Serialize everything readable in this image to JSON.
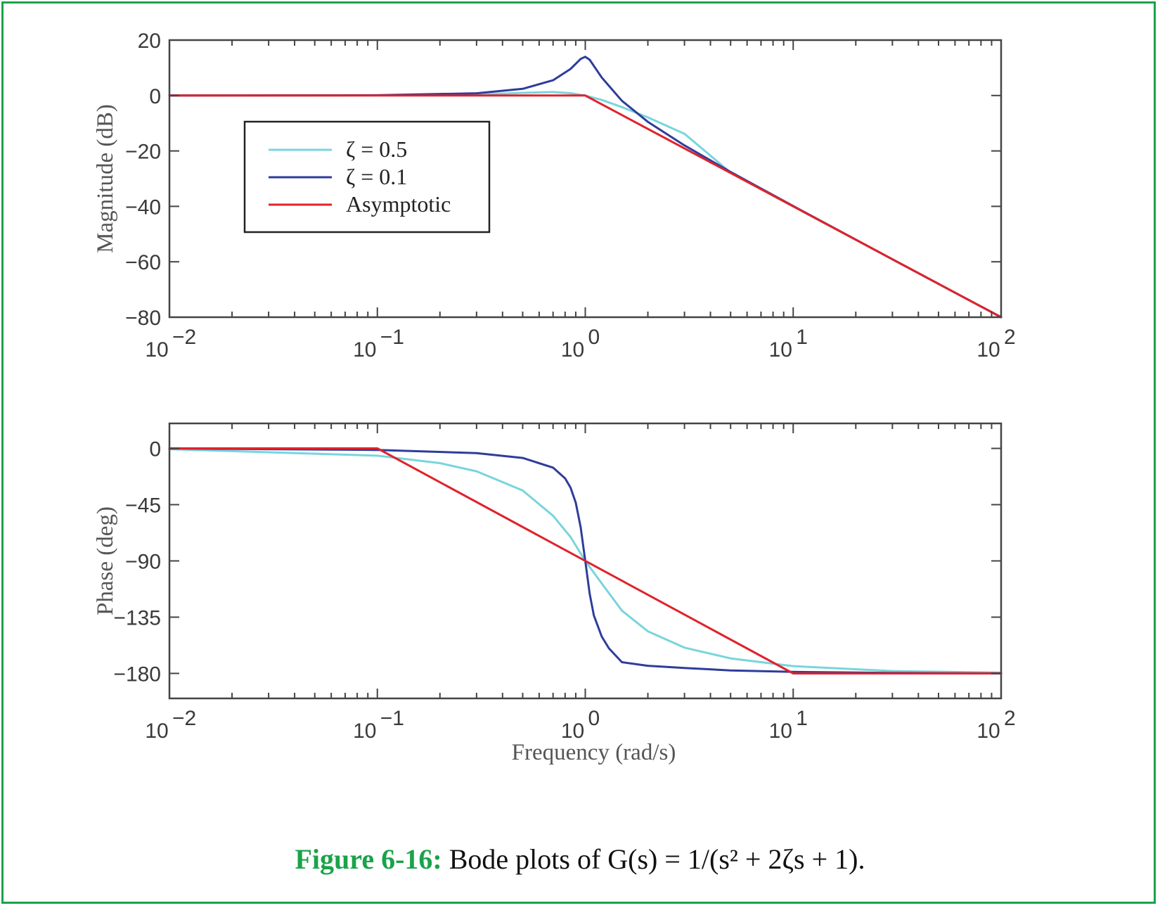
{
  "caption": {
    "label": "Figure 6-16:",
    "text": "Bode plots of G(s) = 1/(s² + 2ζs + 1)."
  },
  "colors": {
    "frame": "#1aa34a",
    "zeta_05": "#79d5dc",
    "zeta_01": "#2e3d9b",
    "asymptotic": "#e0222b"
  },
  "chart_data": [
    {
      "type": "line",
      "title": "",
      "xlabel": "",
      "ylabel": "Magnitude (dB)",
      "xscale": "log",
      "xlim": [
        0.01,
        100
      ],
      "ylim": [
        -80,
        20
      ],
      "xticks": [
        0.01,
        0.1,
        1,
        10,
        100
      ],
      "xtick_labels": [
        {
          "base": "10",
          "exp": "−2"
        },
        {
          "base": "10",
          "exp": "−1"
        },
        {
          "base": "10",
          "exp": "0"
        },
        {
          "base": "10",
          "exp": "1"
        },
        {
          "base": "10",
          "exp": "2"
        }
      ],
      "yticks": [
        20,
        0,
        -20,
        -40,
        -60,
        -80
      ],
      "ytick_labels": [
        "20",
        "0",
        "−20",
        "−40",
        "−60",
        "−80"
      ],
      "legend": {
        "placement": "upper-left",
        "entries": [
          "ζ = 0.5",
          "ζ = 0.1",
          "Asymptotic"
        ]
      },
      "series": [
        {
          "name": "ζ = 0.5",
          "color": "#79d5dc",
          "x": [
            0.01,
            0.1,
            0.3,
            0.5,
            0.7,
            0.85,
            1,
            1.2,
            1.5,
            2,
            3,
            5,
            10,
            30,
            100
          ],
          "y": [
            0.0,
            0.04,
            0.33,
            0.97,
            1.25,
            0.85,
            0.0,
            -1.6,
            -4.2,
            -7.9,
            -13.8,
            -27.8,
            -40.0,
            -59.1,
            -80.0
          ]
        },
        {
          "name": "ζ = 0.1",
          "color": "#2e3d9b",
          "x": [
            0.01,
            0.1,
            0.3,
            0.5,
            0.7,
            0.85,
            0.95,
            1,
            1.05,
            1.2,
            1.5,
            2,
            3,
            5,
            10,
            30,
            100
          ],
          "y": [
            0.0,
            0.09,
            0.8,
            2.4,
            5.5,
            9.6,
            13.2,
            13.98,
            12.9,
            6.5,
            -1.9,
            -9.5,
            -18.0,
            -27.6,
            -39.9,
            -59.1,
            -80.0
          ]
        },
        {
          "name": "Asymptotic",
          "color": "#e0222b",
          "x": [
            0.01,
            1,
            100
          ],
          "y": [
            0,
            0,
            -80
          ]
        }
      ]
    },
    {
      "type": "line",
      "title": "",
      "xlabel": "Frequency (rad/s)",
      "ylabel": "Phase (deg)",
      "xscale": "log",
      "xlim": [
        0.01,
        100
      ],
      "ylim": [
        -200,
        20
      ],
      "xticks": [
        0.01,
        0.1,
        1,
        10,
        100
      ],
      "xtick_labels": [
        {
          "base": "10",
          "exp": "−2"
        },
        {
          "base": "10",
          "exp": "−1"
        },
        {
          "base": "10",
          "exp": "0"
        },
        {
          "base": "10",
          "exp": "1"
        },
        {
          "base": "10",
          "exp": "2"
        }
      ],
      "yticks": [
        0,
        -45,
        -90,
        -135,
        -180
      ],
      "ytick_labels": [
        "0",
        "−45",
        "−90",
        "−135",
        "−180"
      ],
      "series": [
        {
          "name": "ζ = 0.5",
          "color": "#79d5dc",
          "x": [
            0.01,
            0.1,
            0.2,
            0.3,
            0.5,
            0.7,
            0.85,
            1,
            1.2,
            1.5,
            2,
            3,
            5,
            10,
            30,
            100
          ],
          "y": [
            -0.6,
            -5.8,
            -11.8,
            -18.3,
            -33.7,
            -53.9,
            -70.9,
            -90.0,
            -108.0,
            -129.8,
            -146.3,
            -159.4,
            -168.0,
            -174.2,
            -178.1,
            -179.4
          ]
        },
        {
          "name": "ζ = 0.1",
          "color": "#2e3d9b",
          "x": [
            0.01,
            0.1,
            0.3,
            0.5,
            0.7,
            0.8,
            0.85,
            0.9,
            0.95,
            1,
            1.05,
            1.1,
            1.2,
            1.3,
            1.5,
            2,
            3,
            5,
            10,
            30,
            100
          ],
          "y": [
            -0.1,
            -1.2,
            -3.8,
            -7.6,
            -15.4,
            -23.96,
            -31.4,
            -43.5,
            -62.9,
            -90.0,
            -116.4,
            -133.6,
            -150.5,
            -160.0,
            -171.0,
            -173.9,
            -175.7,
            -177.6,
            -178.8,
            -179.6,
            -179.9
          ]
        },
        {
          "name": "Asymptotic",
          "color": "#e0222b",
          "x": [
            0.01,
            0.1,
            10,
            100
          ],
          "y": [
            0,
            0,
            -180,
            -180
          ]
        }
      ]
    }
  ]
}
